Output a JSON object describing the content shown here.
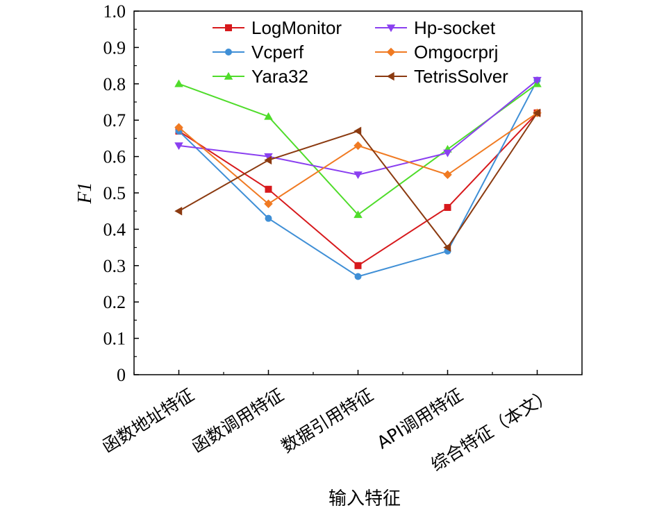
{
  "chart_data": {
    "type": "line",
    "xlabel": "输入特征",
    "ylabel": "F1",
    "ylim": [
      0,
      1.0
    ],
    "yticks": [
      "0",
      "0.1",
      "0.2",
      "0.3",
      "0.4",
      "0.5",
      "0.6",
      "0.7",
      "0.8",
      "0.9",
      "1.0"
    ],
    "categories": [
      "函数地址特征",
      "函数调用特征",
      "数据引用特征",
      "API调用特征",
      "综合特征（本文）"
    ],
    "legend_position": "top",
    "series": [
      {
        "name": "LogMonitor",
        "color": "#d7191c",
        "marker": "square",
        "values": [
          0.67,
          0.51,
          0.3,
          0.46,
          0.72
        ]
      },
      {
        "name": "Vcperf",
        "color": "#3f8fd6",
        "marker": "circle",
        "values": [
          0.67,
          0.43,
          0.27,
          0.34,
          0.81
        ]
      },
      {
        "name": "Yara32",
        "color": "#4fdc2a",
        "marker": "triangle-up",
        "values": [
          0.8,
          0.71,
          0.44,
          0.62,
          0.8
        ]
      },
      {
        "name": "Hp-socket",
        "color": "#8a3ff0",
        "marker": "triangle-down",
        "values": [
          0.63,
          0.6,
          0.55,
          0.61,
          0.81
        ]
      },
      {
        "name": "Omgocrprj",
        "color": "#f07a22",
        "marker": "diamond",
        "values": [
          0.68,
          0.47,
          0.63,
          0.55,
          0.72
        ]
      },
      {
        "name": "TetrisSolver",
        "color": "#8b3a10",
        "marker": "triangle-left",
        "values": [
          0.45,
          0.59,
          0.67,
          0.35,
          0.72
        ]
      }
    ]
  }
}
